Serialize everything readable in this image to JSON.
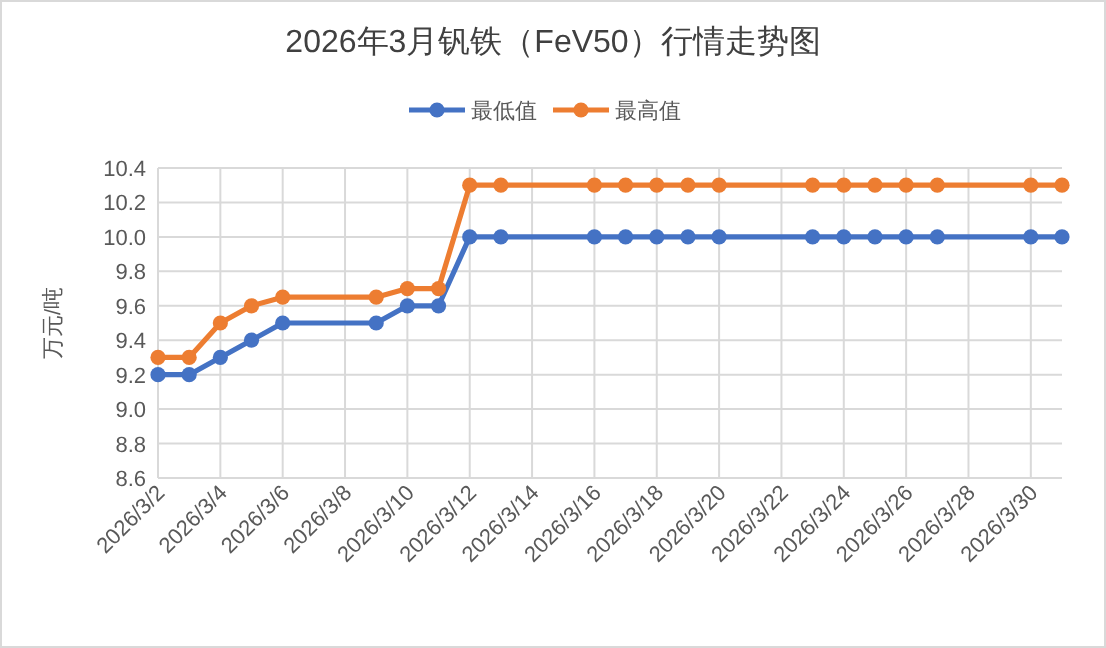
{
  "chart_data": {
    "type": "line",
    "title": "2026年3月钒铁（FeV50）行情走势图",
    "ylabel": "万元/吨",
    "x": [
      "2026-03-02",
      "2026-03-03",
      "2026-03-04",
      "2026-03-05",
      "2026-03-06",
      "2026-03-09",
      "2026-03-10",
      "2026-03-11",
      "2026-03-12",
      "2026-03-13",
      "2026-03-16",
      "2026-03-17",
      "2026-03-18",
      "2026-03-19",
      "2026-03-20",
      "2026-03-23",
      "2026-03-24",
      "2026-03-25",
      "2026-03-26",
      "2026-03-27",
      "2026-03-30",
      "2026-03-31"
    ],
    "series": [
      {
        "name": "最低值",
        "color": "#4472c4",
        "values": [
          9.2,
          9.2,
          9.3,
          9.4,
          9.5,
          9.5,
          9.6,
          9.6,
          10.0,
          10.0,
          10.0,
          10.0,
          10.0,
          10.0,
          10.0,
          10.0,
          10.0,
          10.0,
          10.0,
          10.0,
          10.0,
          10.0
        ]
      },
      {
        "name": "最高值",
        "color": "#ed7d31",
        "values": [
          9.3,
          9.3,
          9.5,
          9.6,
          9.65,
          9.65,
          9.7,
          9.7,
          10.3,
          10.3,
          10.3,
          10.3,
          10.3,
          10.3,
          10.3,
          10.3,
          10.3,
          10.3,
          10.3,
          10.3,
          10.3,
          10.3
        ]
      }
    ],
    "xlim": [
      "2026-03-02",
      "2026-03-31"
    ],
    "xticks": [
      {
        "value": "2026-03-02",
        "label": "2026/3/2"
      },
      {
        "value": "2026-03-04",
        "label": "2026/3/4"
      },
      {
        "value": "2026-03-06",
        "label": "2026/3/6"
      },
      {
        "value": "2026-03-08",
        "label": "2026/3/8"
      },
      {
        "value": "2026-03-10",
        "label": "2026/3/10"
      },
      {
        "value": "2026-03-12",
        "label": "2026/3/12"
      },
      {
        "value": "2026-03-14",
        "label": "2026/3/14"
      },
      {
        "value": "2026-03-16",
        "label": "2026/3/16"
      },
      {
        "value": "2026-03-18",
        "label": "2026/3/18"
      },
      {
        "value": "2026-03-20",
        "label": "2026/3/20"
      },
      {
        "value": "2026-03-22",
        "label": "2026/3/22"
      },
      {
        "value": "2026-03-24",
        "label": "2026/3/24"
      },
      {
        "value": "2026-03-26",
        "label": "2026/3/26"
      },
      {
        "value": "2026-03-28",
        "label": "2026/3/28"
      },
      {
        "value": "2026-03-30",
        "label": "2026/3/30"
      }
    ],
    "ylim": [
      8.6,
      10.4
    ],
    "yticks": [
      8.6,
      8.8,
      {
        "value": 9.0,
        "label": "9.0"
      },
      9.2,
      9.4,
      9.6,
      9.8,
      {
        "value": 10.0,
        "label": "10.0"
      },
      10.2,
      10.4
    ],
    "grid": true,
    "legend": "top",
    "marker": "circle",
    "line_style": "solid"
  }
}
